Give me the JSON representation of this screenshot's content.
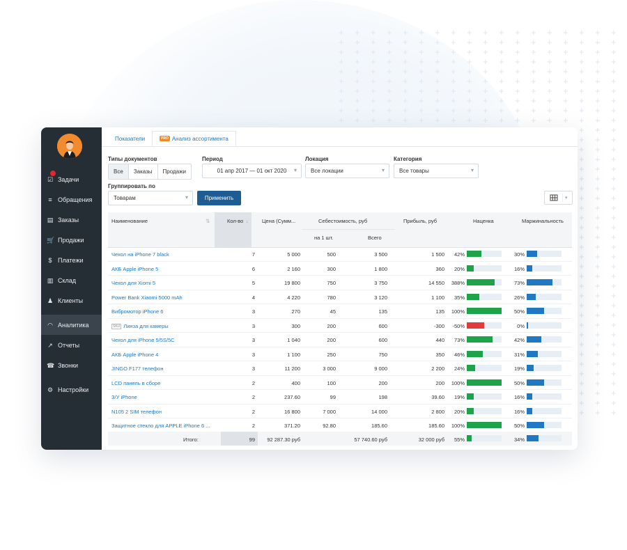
{
  "tabs": {
    "indicators": "Показатели",
    "pro_badge": "PRO",
    "assortment": "Анализ ассортимента"
  },
  "sidebar": {
    "items": [
      {
        "label": "Задачи",
        "icon": "tasks-icon",
        "badge": true
      },
      {
        "label": "Обращения",
        "icon": "filter-icon"
      },
      {
        "label": "Заказы",
        "icon": "orders-icon"
      },
      {
        "label": "Продажи",
        "icon": "cart-icon"
      },
      {
        "label": "Платежи",
        "icon": "dollar-icon"
      },
      {
        "label": "Склад",
        "icon": "barcode-icon"
      },
      {
        "label": "Клиенты",
        "icon": "users-icon"
      },
      {
        "label": "Аналитика",
        "icon": "gauge-icon",
        "active": true
      },
      {
        "label": "Отчеты",
        "icon": "chart-icon"
      },
      {
        "label": "Звонки",
        "icon": "phone-icon"
      },
      {
        "label": "Настройки",
        "icon": "gear-icon"
      }
    ]
  },
  "filters": {
    "doc_types_label": "Типы документов",
    "doc_types": [
      "Все",
      "Заказы",
      "Продажи"
    ],
    "period_label": "Период",
    "period_value": "01 апр 2017 — 01 окт 2020",
    "location_label": "Локация",
    "location_value": "Все локации",
    "category_label": "Категория",
    "category_value": "Все товары",
    "group_label": "Группировать по",
    "group_value": "Товарам",
    "apply_label": "Применить"
  },
  "table": {
    "headers": {
      "name": "Наименование",
      "qty": "Кол-во",
      "price": "Цена (Сумм...",
      "cost": "Себестоимость, руб",
      "cost_unit": "на 1 шт.",
      "cost_total": "Всего",
      "profit": "Прибыль, руб",
      "markup": "Наценка",
      "margin": "Маржинальность"
    },
    "rows": [
      {
        "name": "Чехол на iPhone 7 black",
        "qty": "7",
        "price": "5 000",
        "unit": "500",
        "total": "3 500",
        "profit": "1 500",
        "markup": "42%",
        "markup_v": 42,
        "margin": "30%",
        "margin_v": 30
      },
      {
        "name": "АКБ Apple iPhone 5",
        "qty": "6",
        "price": "2 160",
        "unit": "300",
        "total": "1 800",
        "profit": "360",
        "markup": "20%",
        "markup_v": 20,
        "margin": "16%",
        "margin_v": 16
      },
      {
        "name": "Чехол для Xiomi 5",
        "qty": "5",
        "price": "19 800",
        "unit": "750",
        "total": "3 750",
        "profit": "14 550",
        "markup": "388%",
        "markup_v": 388,
        "margin": "73%",
        "margin_v": 73
      },
      {
        "name": "Power Bank Xiaomi 5000 mAh",
        "qty": "4",
        "price": "4 220",
        "unit": "780",
        "total": "3 120",
        "profit": "1 100",
        "markup": "35%",
        "markup_v": 35,
        "margin": "26%",
        "margin_v": 26
      },
      {
        "name": "Вибромотор iPhone 6",
        "qty": "3",
        "price": "270",
        "unit": "45",
        "total": "135",
        "profit": "135",
        "markup": "100%",
        "markup_v": 100,
        "margin": "50%",
        "margin_v": 50
      },
      {
        "name": "Линза для камеры",
        "qty": "3",
        "price": "300",
        "unit": "200",
        "total": "600",
        "profit": "-300",
        "markup": "-50%",
        "markup_v": -50,
        "margin": "0%",
        "margin_v": 0,
        "file_badge": "SKU"
      },
      {
        "name": "Чехол для iPhone 5/5S/5C",
        "qty": "3",
        "price": "1 040",
        "unit": "200",
        "total": "600",
        "profit": "440",
        "markup": "73%",
        "markup_v": 73,
        "margin": "42%",
        "margin_v": 42
      },
      {
        "name": "АКБ Apple iPhone 4",
        "qty": "3",
        "price": "1 100",
        "unit": "250",
        "total": "750",
        "profit": "350",
        "markup": "46%",
        "markup_v": 46,
        "margin": "31%",
        "margin_v": 31
      },
      {
        "name": "JINGO F177 телефон",
        "qty": "3",
        "price": "11 200",
        "unit": "3 000",
        "total": "9 000",
        "profit": "2 200",
        "markup": "24%",
        "markup_v": 24,
        "margin": "19%",
        "margin_v": 19
      },
      {
        "name": "LCD панель в сборе",
        "qty": "2",
        "price": "400",
        "unit": "100",
        "total": "200",
        "profit": "200",
        "markup": "100%",
        "markup_v": 100,
        "margin": "50%",
        "margin_v": 50
      },
      {
        "name": "З/У iPhone",
        "qty": "2",
        "price": "237.60",
        "unit": "99",
        "total": "198",
        "profit": "39.60",
        "markup": "19%",
        "markup_v": 19,
        "margin": "16%",
        "margin_v": 16
      },
      {
        "name": "N105 2 SIM телефон",
        "qty": "2",
        "price": "16 800",
        "unit": "7 000",
        "total": "14 000",
        "profit": "2 800",
        "markup": "20%",
        "markup_v": 20,
        "margin": "16%",
        "margin_v": 16
      },
      {
        "name": "Защитное стекло для APPLE iPhone 6 ...",
        "qty": "2",
        "price": "371.20",
        "unit": "92.80",
        "total": "185.60",
        "profit": "185.60",
        "markup": "100%",
        "markup_v": 100,
        "margin": "50%",
        "margin_v": 50
      }
    ],
    "footer": {
      "label": "Итого:",
      "qty": "99",
      "price": "92 287.30 руб",
      "total": "57 740.60 руб",
      "profit": "32 000 руб",
      "markup": "55%",
      "markup_v": 55,
      "margin": "34%",
      "margin_v": 34
    }
  },
  "colors": {
    "positive": "#1fa34a",
    "negative": "#e23b3b",
    "margin_bar": "#1f78c1",
    "bar_track": "#e7eef5",
    "sidebar": "#262e35",
    "accent": "#1d5d94"
  }
}
